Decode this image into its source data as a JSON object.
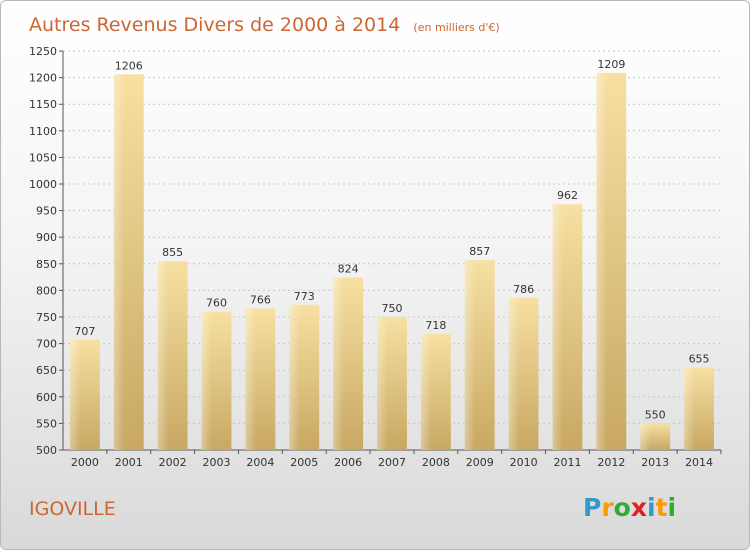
{
  "chart_data": {
    "type": "bar",
    "title": "Autres Revenus Divers de 2000 à 2014",
    "subtitle": "(en milliers d'€)",
    "categories": [
      "2000",
      "2001",
      "2002",
      "2003",
      "2004",
      "2005",
      "2006",
      "2007",
      "2008",
      "2009",
      "2010",
      "2011",
      "2012",
      "2013",
      "2014"
    ],
    "values": [
      707,
      1206,
      855,
      760,
      766,
      773,
      824,
      750,
      718,
      857,
      786,
      962,
      1209,
      550,
      655
    ],
    "ylim": [
      500,
      1250
    ],
    "yticks": [
      500,
      550,
      600,
      650,
      700,
      750,
      800,
      850,
      900,
      950,
      1000,
      1050,
      1100,
      1150,
      1200,
      1250
    ],
    "grid": true,
    "xlabel": "",
    "ylabel": ""
  },
  "place": "IGOVILLE",
  "brand": {
    "letters": [
      "P",
      "r",
      "o",
      "x",
      "i",
      "t",
      "i"
    ],
    "colors": [
      "#3399cc",
      "#ff9900",
      "#33aa33",
      "#dd2222",
      "#3399cc",
      "#ff9900",
      "#33aa33"
    ]
  },
  "colors": {
    "bar_light": "#f5dc9a",
    "bar_dark": "#c9aa64",
    "title": "#cc6633",
    "grid": "#c8c8c8"
  }
}
